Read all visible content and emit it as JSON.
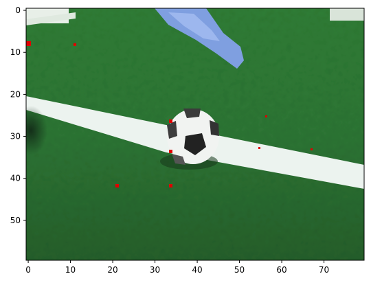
{
  "chart_data": {
    "type": "image",
    "title": "",
    "xlabel": "",
    "ylabel": "",
    "xlim": [
      -0.5,
      79.5
    ],
    "ylim": [
      59.5,
      -0.5
    ],
    "xticks": [
      0,
      10,
      20,
      30,
      40,
      50,
      60,
      70
    ],
    "yticks": [
      0,
      10,
      20,
      30,
      40,
      50
    ],
    "xtick_labels": [
      "0",
      "10",
      "20",
      "30",
      "40",
      "50",
      "60",
      "70"
    ],
    "ytick_labels": [
      "0",
      "10",
      "20",
      "30",
      "40",
      "50"
    ],
    "image_grid": {
      "columns": 80,
      "rows": 60
    },
    "scene": {
      "description_tags": [
        "soccer-ball",
        "grass-field",
        "white-line",
        "blue-cloth"
      ],
      "colors": {
        "grass": "#2f7a35",
        "grass_dark": "#1f5a28",
        "line": "#ecf3ef",
        "ball_white": "#f1f3f1",
        "ball_black": "#222222",
        "blue_object": "#7f9fe0",
        "red_noise": "#e00000"
      }
    }
  }
}
